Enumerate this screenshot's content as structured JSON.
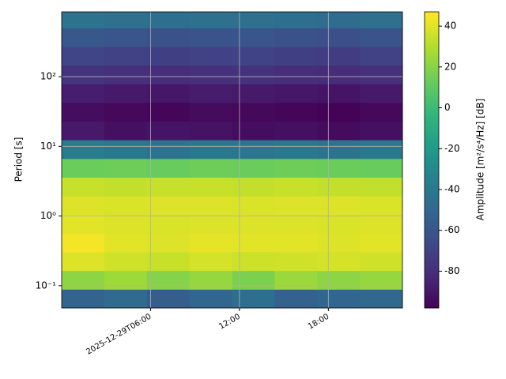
{
  "chart_data": {
    "type": "heatmap",
    "x_label": null,
    "y_label": "Period [s]",
    "colorbar_label": "Amplitude [m²/s⁴/Hz] [dB]",
    "colormap": "viridis",
    "grid": true,
    "y_log": true,
    "xlim": [
      0,
      23
    ],
    "xticks": [
      {
        "value": 6,
        "label": "2025-12-29T06:00"
      },
      {
        "value": 12,
        "label": "12:00"
      },
      {
        "value": 18,
        "label": "18:00"
      }
    ],
    "ylim": [
      0.048,
      850
    ],
    "yticks": [
      {
        "value": 0.1,
        "label": "10⁻¹"
      },
      {
        "value": 1,
        "label": "10⁰"
      },
      {
        "value": 10,
        "label": "10¹"
      },
      {
        "value": 100,
        "label": "10²"
      }
    ],
    "clim": [
      -98,
      47
    ],
    "cticks": [
      -80,
      -60,
      -40,
      -20,
      0,
      20,
      40
    ],
    "xbins": [
      0,
      2.875,
      5.75,
      8.625,
      11.5,
      14.375,
      17.25,
      20.125,
      23
    ],
    "ybins": [
      0.048,
      0.089,
      0.165,
      0.306,
      0.566,
      1.05,
      1.94,
      3.6,
      6.67,
      12.4,
      22.9,
      42.5,
      78.7,
      146,
      270,
      500,
      850
    ],
    "values": [
      [
        -52,
        -48,
        -55,
        -50,
        -46,
        -53,
        -50,
        -49
      ],
      [
        22,
        26,
        20,
        24,
        18,
        25,
        22,
        24
      ],
      [
        40,
        37,
        35,
        38,
        36,
        37,
        38,
        37
      ],
      [
        45,
        41,
        40,
        42,
        41,
        41,
        40,
        41
      ],
      [
        41,
        40,
        39,
        40,
        40,
        40,
        39,
        40
      ],
      [
        40,
        39,
        40,
        40,
        39,
        40,
        40,
        39
      ],
      [
        35,
        34,
        35,
        35,
        34,
        35,
        34,
        34
      ],
      [
        14,
        15,
        13,
        15,
        14,
        15,
        14,
        13
      ],
      [
        -38,
        -40,
        -42,
        -40,
        -41,
        -40,
        -42,
        -40
      ],
      [
        -88,
        -92,
        -90,
        -91,
        -93,
        -92,
        -94,
        -92
      ],
      [
        -93,
        -95,
        -96,
        -94,
        -95,
        -96,
        -97,
        -95
      ],
      [
        -86,
        -88,
        -89,
        -87,
        -88,
        -89,
        -90,
        -88
      ],
      [
        -76,
        -78,
        -79,
        -78,
        -77,
        -79,
        -80,
        -78
      ],
      [
        -68,
        -70,
        -71,
        -70,
        -69,
        -71,
        -72,
        -70
      ],
      [
        -58,
        -60,
        -62,
        -61,
        -60,
        -62,
        -63,
        -61
      ],
      [
        -42,
        -45,
        -46,
        -44,
        -45,
        -46,
        -47,
        -45
      ]
    ]
  }
}
